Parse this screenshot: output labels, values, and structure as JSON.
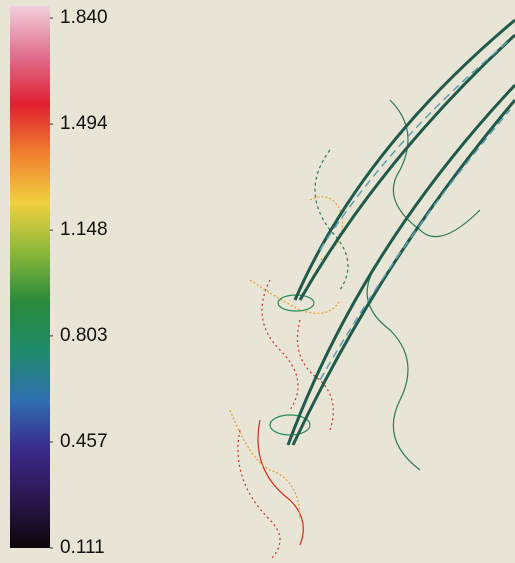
{
  "chart_data": {
    "type": "contour",
    "clim": [
      0.111,
      1.84
    ],
    "colorbar_ticks": [
      {
        "value": 1.84,
        "label": "1.840"
      },
      1.494,
      1.148,
      0.803,
      0.457,
      0.111
    ],
    "colormap": [
      "#0a0608",
      "#2a1850",
      "#3a2a8a",
      "#2f6fb0",
      "#1f8a6a",
      "#2a8a3a",
      "#8ab83a",
      "#f0d040",
      "#f08030",
      "#e02030",
      "#e07090",
      "#f2d0dc"
    ]
  }
}
